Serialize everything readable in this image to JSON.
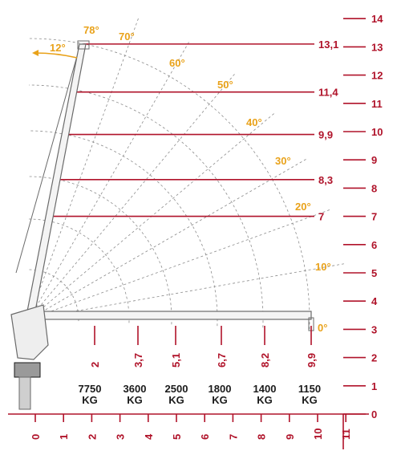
{
  "colors": {
    "red": "#b0132a",
    "orange": "#e9a21a",
    "dark": "#1a1a1a",
    "guide": "#8c8c8c",
    "crane": "#6a6a6a"
  },
  "axis": {
    "vertical_ticks": [
      "0",
      "1",
      "2",
      "3",
      "4",
      "5",
      "6",
      "7",
      "8",
      "9",
      "10",
      "11",
      "12",
      "13",
      "14"
    ],
    "horizontal_ticks": [
      "0",
      "1",
      "2",
      "3",
      "4",
      "5",
      "6",
      "7",
      "8",
      "9",
      "10",
      "11"
    ]
  },
  "heights": [
    "13,1",
    "11,4",
    "9,9",
    "8,3",
    "7"
  ],
  "angles": [
    "78°",
    "70°",
    "60°",
    "50°",
    "40°",
    "30°",
    "20°",
    "10°",
    "0°"
  ],
  "slew_angle": "12°",
  "outreach": [
    "2",
    "3,7",
    "5,1",
    "6,7",
    "8,2",
    "9,9"
  ],
  "loads": [
    {
      "value": "7750",
      "unit": "KG"
    },
    {
      "value": "3600",
      "unit": "KG"
    },
    {
      "value": "2500",
      "unit": "KG"
    },
    {
      "value": "1800",
      "unit": "KG"
    },
    {
      "value": "1400",
      "unit": "KG"
    },
    {
      "value": "1150",
      "unit": "KG"
    }
  ]
}
